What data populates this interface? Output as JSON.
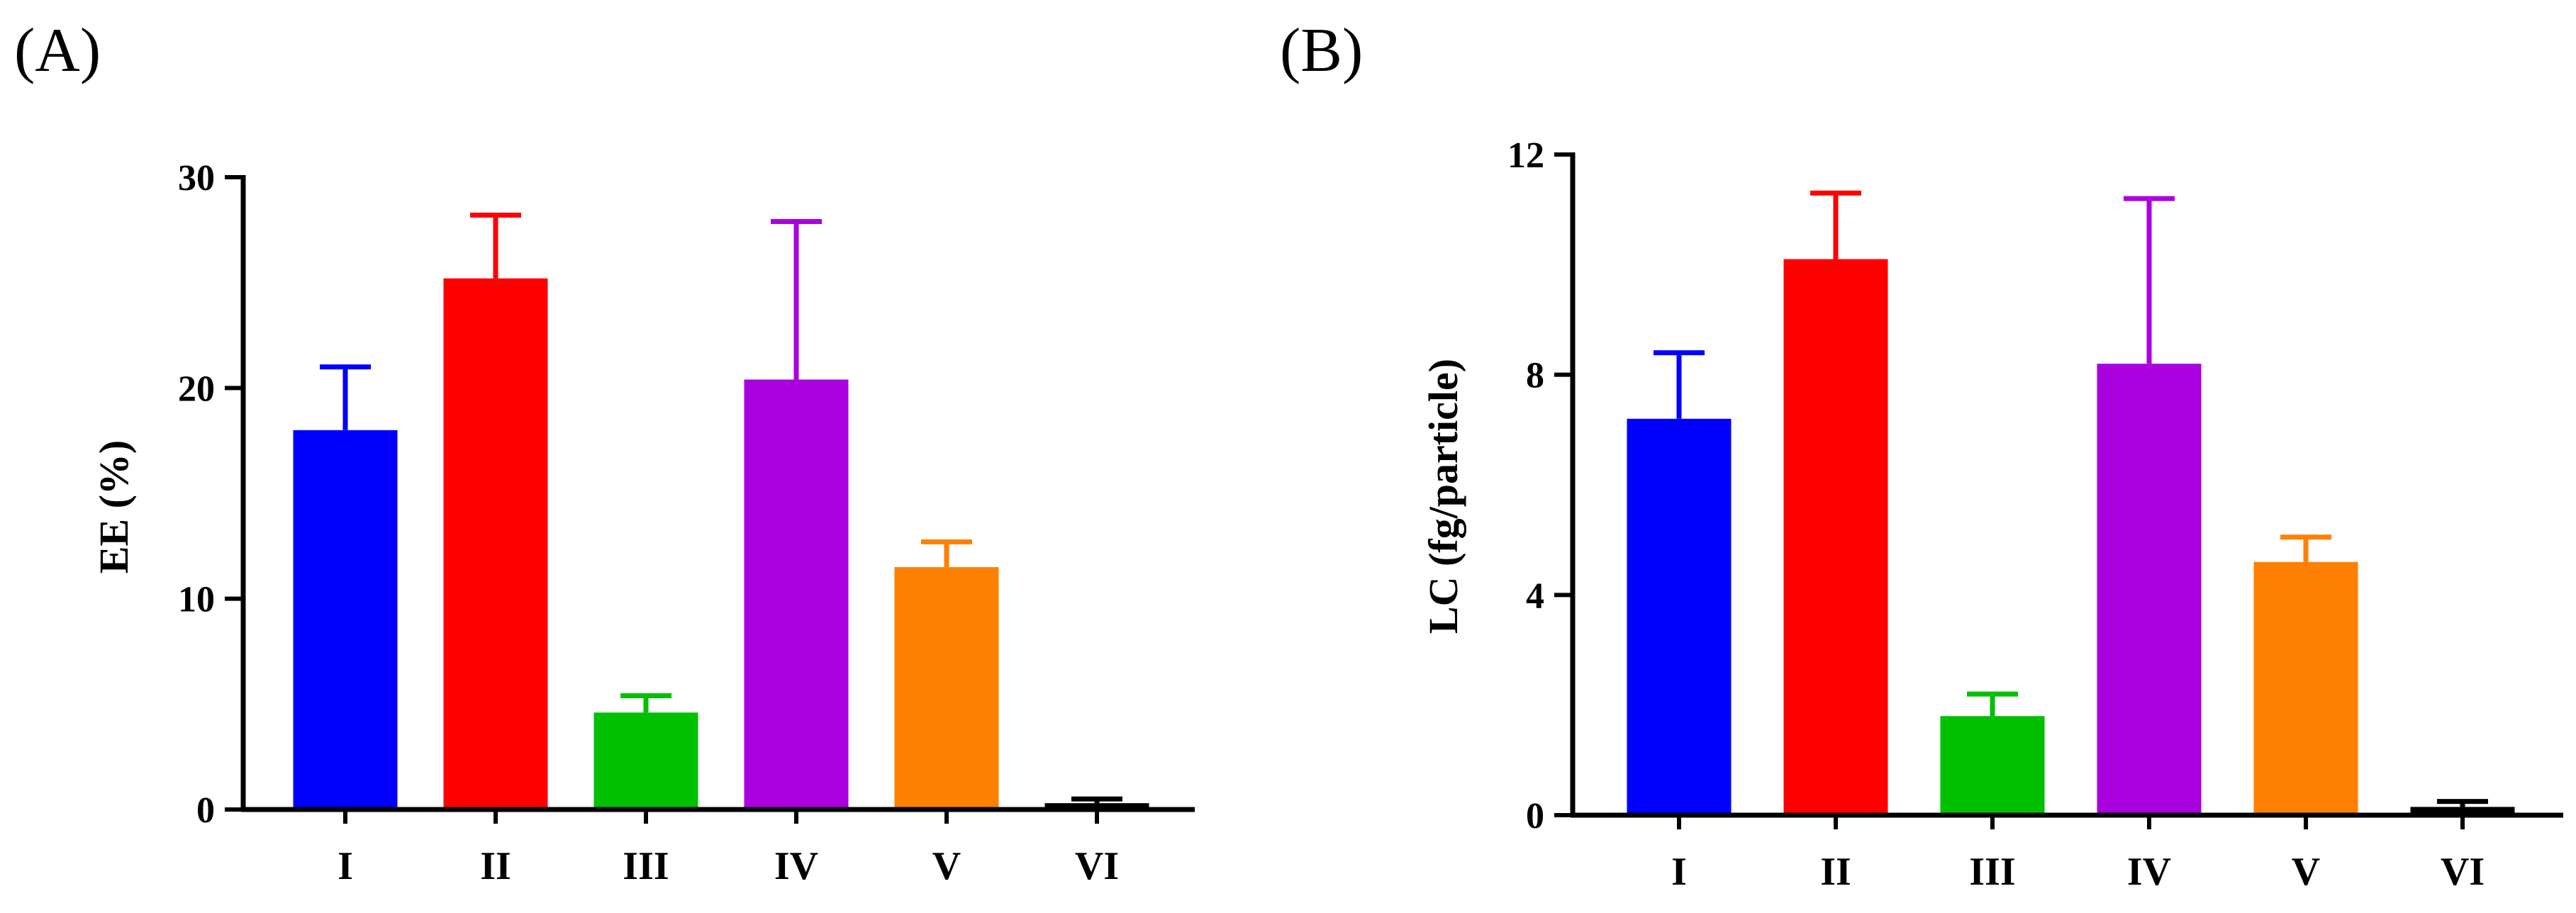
{
  "panels": [
    {
      "label": "(A)",
      "chart_data": {
        "type": "bar",
        "ylabel": "EE (%)",
        "xlabel": "",
        "ylim": [
          0,
          30
        ],
        "yticks": [
          0,
          10,
          20,
          30
        ],
        "ytick_labels": [
          "0",
          "10",
          "20",
          "30"
        ],
        "categories": [
          "I",
          "II",
          "III",
          "IV",
          "V",
          "VI"
        ],
        "values": [
          18.0,
          25.2,
          4.6,
          20.4,
          11.5,
          0.3
        ],
        "errors": [
          3.0,
          3.0,
          0.8,
          7.5,
          1.2,
          0.2
        ],
        "colors": [
          "#0000FF",
          "#FF0000",
          "#00C000",
          "#AA00E0",
          "#FF8000",
          "#000000"
        ]
      }
    },
    {
      "label": "(B)",
      "chart_data": {
        "type": "bar",
        "ylabel": "LC (fg/particle)",
        "xlabel": "",
        "ylim": [
          0,
          12
        ],
        "yticks": [
          0,
          4,
          8,
          12
        ],
        "ytick_labels": [
          "0",
          "4",
          "8",
          "12"
        ],
        "categories": [
          "I",
          "II",
          "III",
          "IV",
          "V",
          "VI"
        ],
        "values": [
          7.2,
          10.1,
          1.8,
          8.2,
          4.6,
          0.15
        ],
        "errors": [
          1.2,
          1.2,
          0.4,
          3.0,
          0.45,
          0.1
        ],
        "colors": [
          "#0000FF",
          "#FF0000",
          "#00C000",
          "#AA00E0",
          "#FF8000",
          "#000000"
        ]
      }
    }
  ]
}
